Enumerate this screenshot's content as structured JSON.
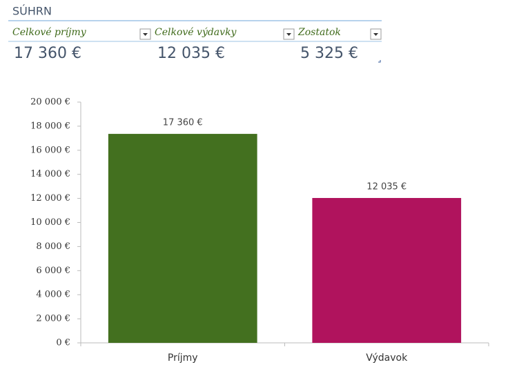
{
  "summary": {
    "title": "SÚHRN",
    "headers": [
      "Celkové príjmy",
      "Celkové výdavky",
      "Zostatok"
    ],
    "values": [
      "17 360 €",
      "12 035 €",
      "5 325 €"
    ]
  },
  "chart_data": {
    "type": "bar",
    "categories": [
      "Príjmy",
      "Výdavok"
    ],
    "values": [
      17360,
      12035
    ],
    "value_labels": [
      "17 360 €",
      "12 035 €"
    ],
    "colors": [
      "#43701f",
      "#b0135d"
    ],
    "ylim": [
      0,
      20000
    ],
    "yticks": [
      {
        "value": 0,
        "label": "0 €"
      },
      {
        "value": 2000,
        "label": "2 000 €"
      },
      {
        "value": 4000,
        "label": "4 000 €"
      },
      {
        "value": 6000,
        "label": "6 000 €"
      },
      {
        "value": 8000,
        "label": "8 000 €"
      },
      {
        "value": 10000,
        "label": "10 000 €"
      },
      {
        "value": 12000,
        "label": "12 000 €"
      },
      {
        "value": 14000,
        "label": "14 000 €"
      },
      {
        "value": 16000,
        "label": "16 000 €"
      },
      {
        "value": 18000,
        "label": "18 000 €"
      },
      {
        "value": 20000,
        "label": "20 000 €"
      }
    ],
    "grid": false
  }
}
